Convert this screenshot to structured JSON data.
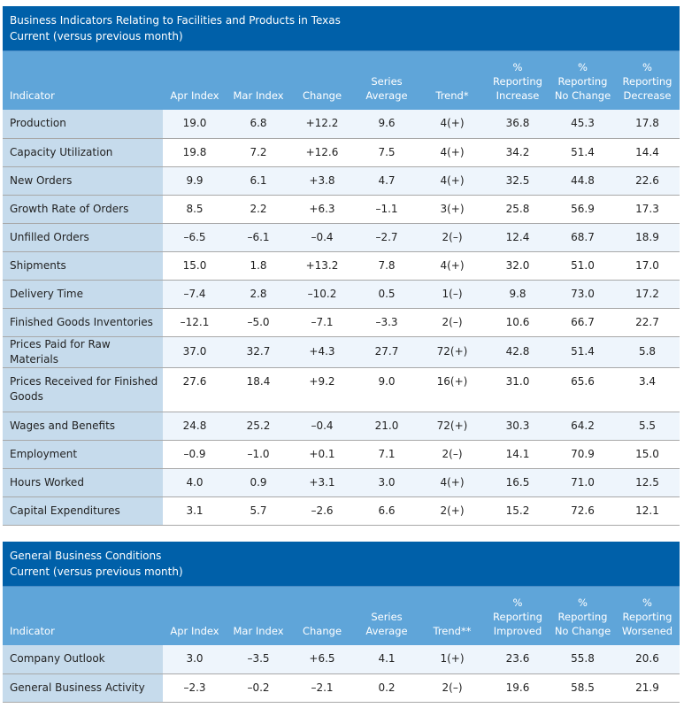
{
  "table1": {
    "title": "Business Indicators Relating to Facilities and Products in Texas",
    "subtitle": "Current (versus previous month)",
    "headers": {
      "indicator": "Indicator",
      "apr": "Apr Index",
      "mar": "Mar Index",
      "change": "Change",
      "avg_1": "Series",
      "avg_2": "Average",
      "trend": "Trend*",
      "p1_1": "%",
      "p1_2": "Reporting",
      "p1_3": "Increase",
      "p2_1": "%",
      "p2_2": "Reporting",
      "p2_3": "No Change",
      "p3_1": "%",
      "p3_2": "Reporting",
      "p3_3": "Decrease"
    },
    "rows": [
      {
        "indicator": "Production",
        "apr": "19.0",
        "mar": "6.8",
        "change": "+12.2",
        "avg": "9.6",
        "trend": "4(+)",
        "p1": "36.8",
        "p2": "45.3",
        "p3": "17.8"
      },
      {
        "indicator": "Capacity Utilization",
        "apr": "19.8",
        "mar": "7.2",
        "change": "+12.6",
        "avg": "7.5",
        "trend": "4(+)",
        "p1": "34.2",
        "p2": "51.4",
        "p3": "14.4"
      },
      {
        "indicator": "New Orders",
        "apr": "9.9",
        "mar": "6.1",
        "change": "+3.8",
        "avg": "4.7",
        "trend": "4(+)",
        "p1": "32.5",
        "p2": "44.8",
        "p3": "22.6"
      },
      {
        "indicator": "Growth Rate of Orders",
        "apr": "8.5",
        "mar": "2.2",
        "change": "+6.3",
        "avg": "–1.1",
        "trend": "3(+)",
        "p1": "25.8",
        "p2": "56.9",
        "p3": "17.3"
      },
      {
        "indicator": "Unfilled Orders",
        "apr": "–6.5",
        "mar": "–6.1",
        "change": "–0.4",
        "avg": "–2.7",
        "trend": "2(–)",
        "p1": "12.4",
        "p2": "68.7",
        "p3": "18.9"
      },
      {
        "indicator": "Shipments",
        "apr": "15.0",
        "mar": "1.8",
        "change": "+13.2",
        "avg": "7.8",
        "trend": "4(+)",
        "p1": "32.0",
        "p2": "51.0",
        "p3": "17.0"
      },
      {
        "indicator": "Delivery Time",
        "apr": "–7.4",
        "mar": "2.8",
        "change": "–10.2",
        "avg": "0.5",
        "trend": "1(–)",
        "p1": "9.8",
        "p2": "73.0",
        "p3": "17.2"
      },
      {
        "indicator": "Finished Goods Inventories",
        "apr": "–12.1",
        "mar": "–5.0",
        "change": "–7.1",
        "avg": "–3.3",
        "trend": "2(–)",
        "p1": "10.6",
        "p2": "66.7",
        "p3": "22.7"
      },
      {
        "indicator": "Prices Paid for Raw Materials",
        "apr": "37.0",
        "mar": "32.7",
        "change": "+4.3",
        "avg": "27.7",
        "trend": "72(+)",
        "p1": "42.8",
        "p2": "51.4",
        "p3": "5.8"
      },
      {
        "indicator": "Prices Received for Finished Goods",
        "apr": "27.6",
        "mar": "18.4",
        "change": "+9.2",
        "avg": "9.0",
        "trend": "16(+)",
        "p1": "31.0",
        "p2": "65.6",
        "p3": "3.4"
      },
      {
        "indicator": "Wages and Benefits",
        "apr": "24.8",
        "mar": "25.2",
        "change": "–0.4",
        "avg": "21.0",
        "trend": "72(+)",
        "p1": "30.3",
        "p2": "64.2",
        "p3": "5.5"
      },
      {
        "indicator": "Employment",
        "apr": "–0.9",
        "mar": "–1.0",
        "change": "+0.1",
        "avg": "7.1",
        "trend": "2(–)",
        "p1": "14.1",
        "p2": "70.9",
        "p3": "15.0"
      },
      {
        "indicator": "Hours Worked",
        "apr": "4.0",
        "mar": "0.9",
        "change": "+3.1",
        "avg": "3.0",
        "trend": "4(+)",
        "p1": "16.5",
        "p2": "71.0",
        "p3": "12.5"
      },
      {
        "indicator": "Capital Expenditures",
        "apr": "3.1",
        "mar": "5.7",
        "change": "–2.6",
        "avg": "6.6",
        "trend": "2(+)",
        "p1": "15.2",
        "p2": "72.6",
        "p3": "12.1"
      }
    ]
  },
  "table2": {
    "title": "General Business Conditions",
    "subtitle": "Current (versus previous month)",
    "headers": {
      "indicator": "Indicator",
      "apr": "Apr Index",
      "mar": "Mar Index",
      "change": "Change",
      "avg_1": "Series",
      "avg_2": "Average",
      "trend": "Trend**",
      "p1_1": "%",
      "p1_2": "Reporting",
      "p1_3": "Improved",
      "p2_1": "%",
      "p2_2": "Reporting",
      "p2_3": "No Change",
      "p3_1": "%",
      "p3_2": "Reporting",
      "p3_3": "Worsened"
    },
    "rows": [
      {
        "indicator": "Company Outlook",
        "apr": "3.0",
        "mar": "–3.5",
        "change": "+6.5",
        "avg": "4.1",
        "trend": "1(+)",
        "p1": "23.6",
        "p2": "55.8",
        "p3": "20.6"
      },
      {
        "indicator": "General Business Activity",
        "apr": "–2.3",
        "mar": "–0.2",
        "change": "–2.1",
        "avg": "0.2",
        "trend": "2(–)",
        "p1": "19.6",
        "p2": "58.5",
        "p3": "21.9"
      }
    ]
  }
}
